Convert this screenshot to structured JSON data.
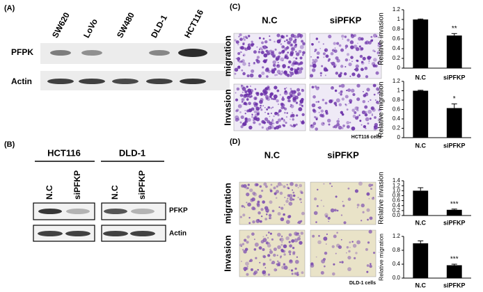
{
  "panel_a": {
    "label": "(A)",
    "lanes": [
      "SW620",
      "LoVo",
      "SW480",
      "DLD-1",
      "HCT116"
    ],
    "rows": [
      "PFPK",
      "Actin"
    ]
  },
  "panel_b": {
    "label": "(B)",
    "groups": [
      "HCT116",
      "DLD-1"
    ],
    "lanes": [
      "N.C",
      "siPFKP",
      "N.C",
      "siPFKP"
    ],
    "rows": [
      "PFKP",
      "Actin"
    ]
  },
  "panel_c": {
    "label": "(C)",
    "columns": [
      "N.C",
      "siPFKP"
    ],
    "rows": [
      "migration",
      "Invasion"
    ],
    "caption": "HCT116 cells"
  },
  "panel_d": {
    "label": "(D)",
    "columns": [
      "N.C",
      "siPFKP"
    ],
    "rows": [
      "migration",
      "Invasion"
    ],
    "caption": "DLD-1 cells"
  },
  "chart_data": [
    {
      "type": "bar",
      "y_label": "Relative invasion",
      "categories": [
        "N.C",
        "siPFKP"
      ],
      "values": [
        1.0,
        0.67
      ],
      "errors": [
        0.01,
        0.04
      ],
      "significance": [
        null,
        "**"
      ],
      "color": "#000000",
      "ylim": [
        0,
        1.2
      ],
      "yticks": [
        0,
        0.2,
        0.4,
        0.6,
        0.8,
        1,
        1.2
      ]
    },
    {
      "type": "bar",
      "y_label": "Relative migration",
      "categories": [
        "N.C",
        "siPFKP"
      ],
      "values": [
        1.0,
        0.63
      ],
      "errors": [
        0.01,
        0.09
      ],
      "significance": [
        null,
        "*"
      ],
      "color": "#000000",
      "ylim": [
        0,
        1.2
      ],
      "yticks": [
        0,
        0.2,
        0.4,
        0.6,
        0.8,
        1,
        1.2
      ]
    },
    {
      "type": "bar",
      "y_label": "Relative invasion",
      "categories": [
        "N.C",
        "siPFKP"
      ],
      "values": [
        1.0,
        0.23
      ],
      "errors": [
        0.12,
        0.03
      ],
      "significance": [
        null,
        "***"
      ],
      "color": "#000000",
      "ylim": [
        0,
        1.4
      ],
      "yticks": [
        {
          "value": 0,
          "label": "0.0"
        },
        0.2,
        0.4,
        0.6,
        0.8,
        {
          "value": 1,
          "label": "1.0"
        },
        1.2,
        1.4
      ]
    },
    {
      "type": "bar",
      "y_label": "Relative migration",
      "categories": [
        "N.C",
        "siPFKP"
      ],
      "values": [
        1.0,
        0.37
      ],
      "errors": [
        0.07,
        0.03
      ],
      "significance": [
        null,
        "***"
      ],
      "color": "#000000",
      "ylim": [
        0,
        1.2
      ],
      "yticks": [
        {
          "value": 0,
          "label": "0.0"
        },
        0.4,
        0.8,
        1.2
      ]
    }
  ]
}
